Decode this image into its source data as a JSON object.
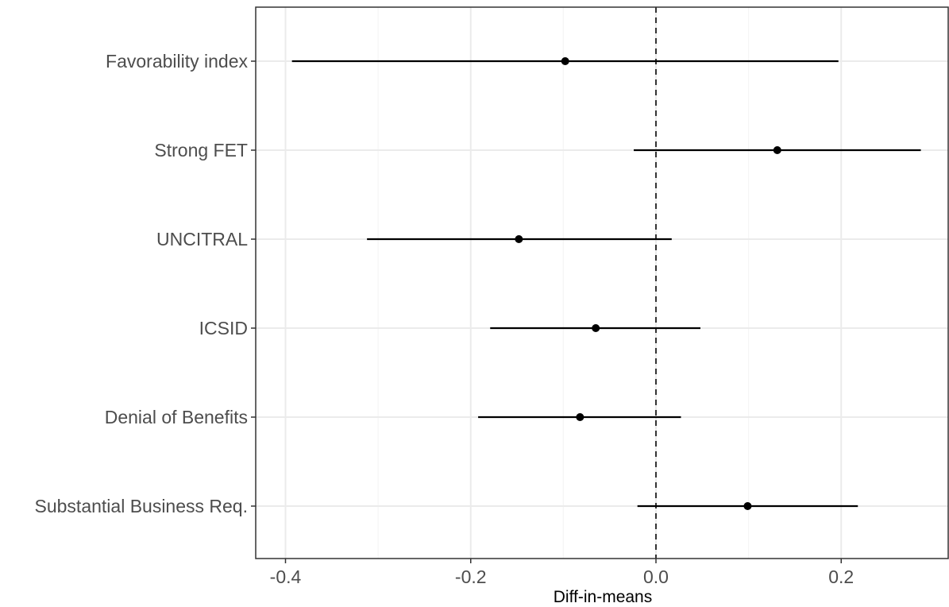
{
  "chart_data": {
    "type": "scatter",
    "subtype": "coefficient-plot",
    "title": "",
    "xlabel": "Diff-in-means",
    "ylabel": "",
    "xlim": [
      -0.4,
      0.3
    ],
    "xticks": [
      "-0.4",
      "-0.2",
      "0.0",
      "0.2"
    ],
    "reference_line": {
      "x": 0.0,
      "style": "dashed"
    },
    "grid": true,
    "legend": "none",
    "categories": [
      "Favorability index",
      "Strong FET",
      "UNCITRAL",
      "ICSID",
      "Denial of Benefits",
      "Substantial Business Req."
    ],
    "series": [
      {
        "points": [
          {
            "label": "Favorability index",
            "estimate": -0.098,
            "lower": -0.393,
            "upper": 0.197
          },
          {
            "label": "Strong FET",
            "estimate": 0.131,
            "lower": -0.024,
            "upper": 0.286
          },
          {
            "label": "UNCITRAL",
            "estimate": -0.148,
            "lower": -0.312,
            "upper": 0.017
          },
          {
            "label": "ICSID",
            "estimate": -0.065,
            "lower": -0.179,
            "upper": 0.048
          },
          {
            "label": "Denial of Benefits",
            "estimate": -0.082,
            "lower": -0.192,
            "upper": 0.027
          },
          {
            "label": "Substantial Business Req.",
            "estimate": 0.099,
            "lower": -0.02,
            "upper": 0.218
          }
        ]
      }
    ]
  },
  "colors": {
    "point": "#000000",
    "errorbar": "#000000",
    "grid_major": "#ebebeb",
    "grid_minor": "#f5f5f5",
    "panel_border": "#333333",
    "axis_text": "#4d4d4d"
  }
}
